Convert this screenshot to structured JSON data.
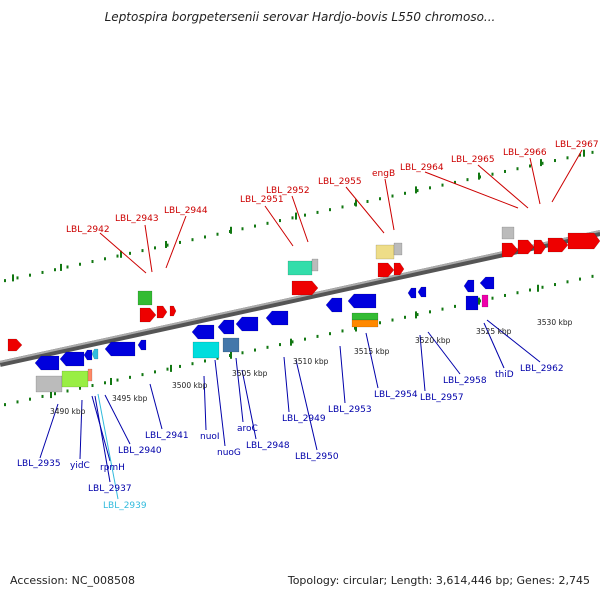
{
  "title": "Leptospira borgpetersenii serovar Hardjo-bovis L550 chromoso...",
  "footer": {
    "accession": "Accession: NC_008508",
    "summary": "Topology: circular; Length: 3,614,446 bp; Genes: 2,745"
  },
  "colors": {
    "top_label": "#cc0000",
    "bottom_label": "#0000aa",
    "highlight_label": "#33bbdd",
    "backbone": "#888888",
    "forward_gene": "#ee0000",
    "reverse_gene": "#0000dd"
  },
  "ticks": [
    "3490 kbp",
    "3495 kbp",
    "3500 kbp",
    "3505 kbp",
    "3510 kbp",
    "3515 kbp",
    "3520 kbp",
    "3525 kbp",
    "3530 kbp"
  ],
  "top_labels": [
    "LBL_2942",
    "LBL_2943",
    "LBL_2944",
    "LBL_2951",
    "LBL_2952",
    "LBL_2955",
    "engB",
    "LBL_2964",
    "LBL_2965",
    "LBL_2966",
    "LBL_2967"
  ],
  "bottom_labels": [
    "LBL_2935",
    "yidC",
    "rpmH",
    "LBL_2937",
    "LBL_2939",
    "LBL_2940",
    "LBL_2941",
    "nuoI",
    "nuoG",
    "aroC",
    "LBL_2948",
    "LBL_2949",
    "LBL_2950",
    "LBL_2953",
    "LBL_2954",
    "LBL_2957",
    "LBL_2958",
    "thiD",
    "LBL_2962"
  ]
}
